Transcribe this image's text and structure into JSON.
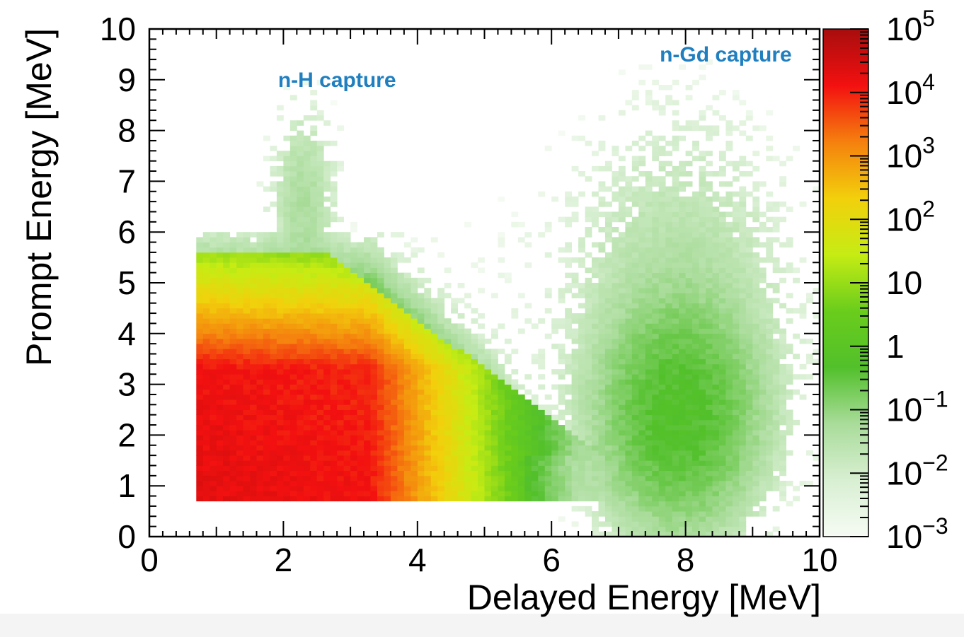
{
  "chart_data": {
    "type": "heatmap",
    "title": "",
    "xlabel": "Delayed Energy [MeV]",
    "ylabel": "Prompt Energy [MeV]",
    "xlim": [
      0,
      10
    ],
    "ylim": [
      0,
      10
    ],
    "x_ticks": [
      "0",
      "2",
      "4",
      "6",
      "8",
      "10"
    ],
    "y_ticks": [
      "0",
      "1",
      "2",
      "3",
      "4",
      "5",
      "6",
      "7",
      "8",
      "9",
      "10"
    ],
    "colorbar": {
      "scale": "log",
      "range": [
        0.001,
        100000
      ],
      "tick_labels": [
        {
          "value": 0.001,
          "base": "10",
          "exp": "−3"
        },
        {
          "value": 0.01,
          "base": "10",
          "exp": "−2"
        },
        {
          "value": 0.1,
          "base": "10",
          "exp": "−1"
        },
        {
          "value": 1,
          "base": "1",
          "exp": ""
        },
        {
          "value": 10,
          "base": "10",
          "exp": ""
        },
        {
          "value": 100,
          "base": "10",
          "exp": "2"
        },
        {
          "value": 1000,
          "base": "10",
          "exp": "3"
        },
        {
          "value": 10000,
          "base": "10",
          "exp": "4"
        },
        {
          "value": 100000,
          "base": "10",
          "exp": "5"
        }
      ],
      "colors": [
        "#f6fbf4",
        "#d8efd2",
        "#a9dc9a",
        "#52c02b",
        "#6acd1c",
        "#c6ec14",
        "#f2d00c",
        "#f5800e",
        "#f31010",
        "#a80d0d"
      ]
    },
    "regions": [
      {
        "name": "n-H capture",
        "x_range": [
          0.7,
          3.3
        ],
        "y_range": [
          0.7,
          3.3
        ],
        "peak": 20000
      },
      {
        "name": "n-Gd capture",
        "center": [
          7.9,
          2.4
        ],
        "peak": 0.5
      }
    ],
    "annotations": [
      {
        "text": "n-H capture",
        "x": 2.8,
        "y": 9.0
      },
      {
        "text": "n-Gd capture",
        "x": 8.6,
        "y": 9.5
      }
    ]
  }
}
